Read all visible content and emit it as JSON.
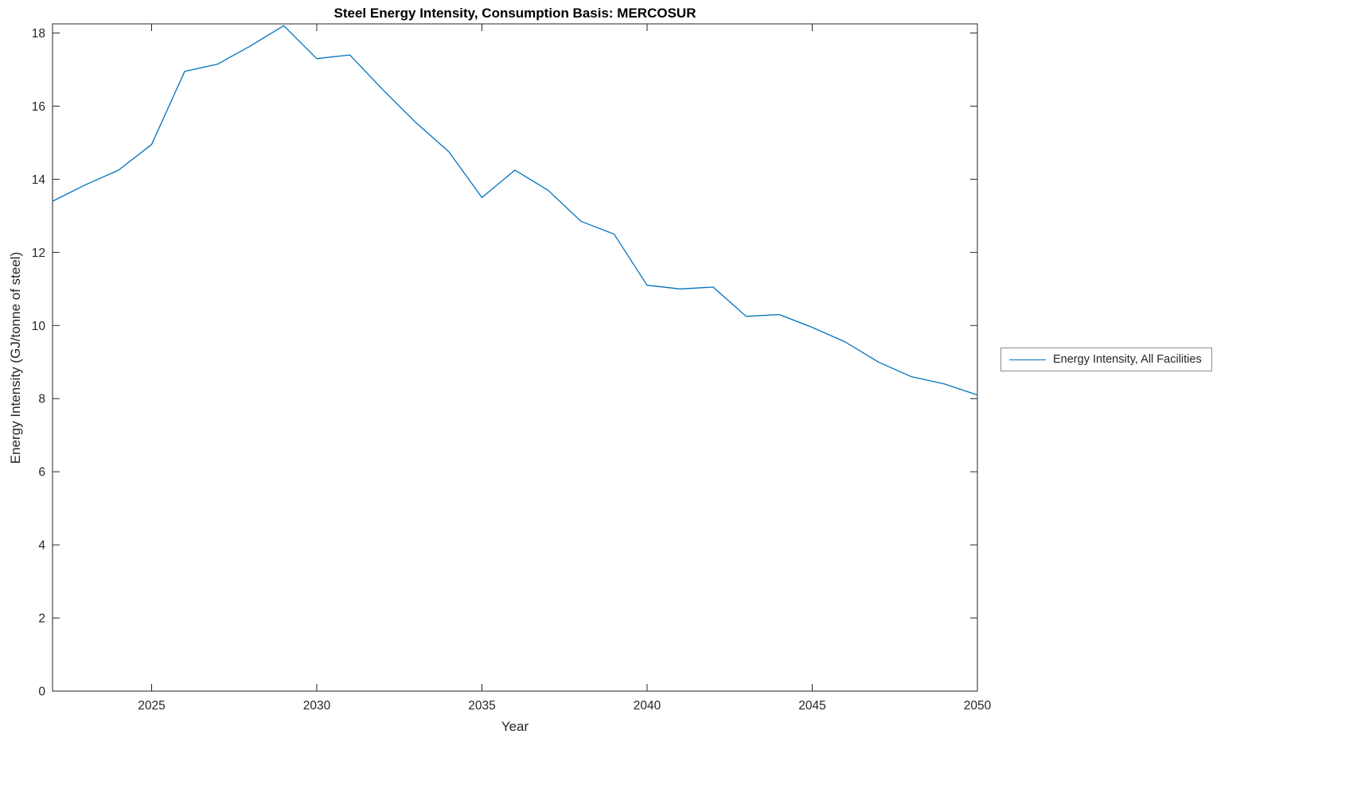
{
  "chart_data": {
    "type": "line",
    "title": "Steel Energy Intensity, Consumption Basis: MERCOSUR",
    "xlabel": "Year",
    "ylabel": "Energy Intensity (GJ/tonne of steel)",
    "x": [
      2022,
      2023,
      2024,
      2025,
      2026,
      2027,
      2028,
      2029,
      2030,
      2031,
      2032,
      2033,
      2034,
      2035,
      2036,
      2037,
      2038,
      2039,
      2040,
      2041,
      2042,
      2043,
      2044,
      2045,
      2046,
      2047,
      2048,
      2049,
      2050
    ],
    "series": [
      {
        "name": "Energy Intensity, All Facilities",
        "color": "#0072BD",
        "values": [
          13.4,
          13.85,
          14.25,
          14.95,
          16.95,
          17.15,
          17.65,
          18.2,
          17.3,
          17.4,
          16.45,
          15.55,
          14.75,
          13.5,
          14.25,
          13.7,
          12.85,
          12.5,
          11.1,
          11.0,
          11.05,
          10.25,
          10.3,
          9.95,
          9.55,
          9.0,
          8.6,
          8.4,
          8.1
        ]
      }
    ],
    "xlim": [
      2022,
      2050
    ],
    "ylim": [
      0,
      18.25
    ],
    "xticks": [
      2025,
      2030,
      2035,
      2040,
      2045,
      2050
    ],
    "yticks": [
      0,
      2,
      4,
      6,
      8,
      10,
      12,
      14,
      16,
      18
    ],
    "grid": false,
    "legend_position": "outside-right",
    "axis_color": "#262626"
  }
}
